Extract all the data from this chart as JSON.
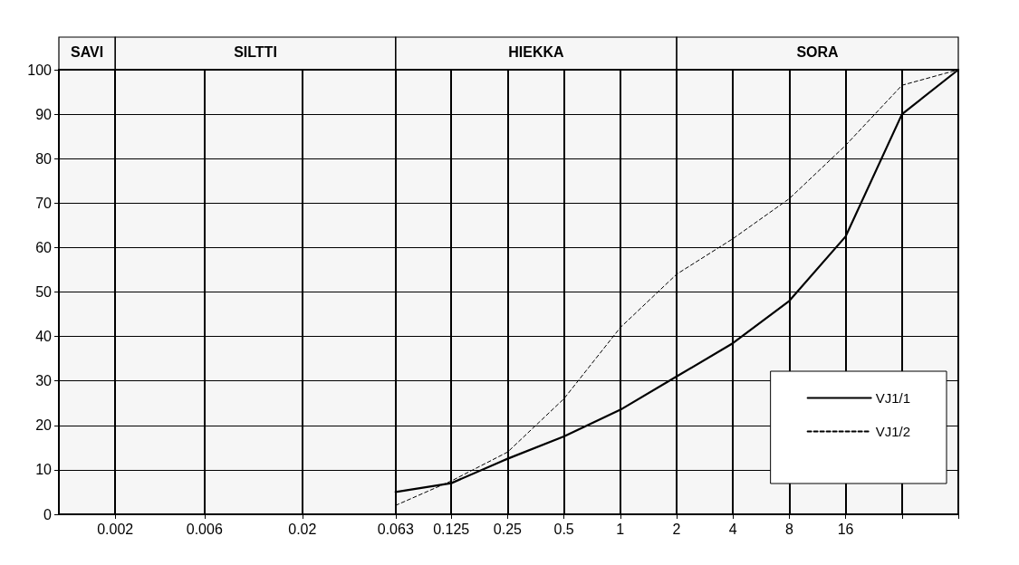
{
  "chart_data": {
    "type": "line",
    "log": "x",
    "grid": true,
    "legend": "bottom right",
    "marker": "none",
    "xlim": [
      0.001,
      64
    ],
    "xticks": [
      0.002,
      0.006,
      0.02,
      0.063,
      0.125,
      0.25,
      0.5,
      1,
      2,
      4,
      8,
      16,
      {
        "value": 32,
        "label": null
      },
      {
        "value": 64,
        "label": null
      }
    ],
    "ylim": [
      0,
      100
    ],
    "yticks": [
      0,
      10,
      20,
      30,
      40,
      50,
      60,
      70,
      80,
      90,
      100
    ],
    "bands": [
      {
        "axis": "x",
        "from": 0.001,
        "to": 0.002,
        "label": "SAVI"
      },
      {
        "axis": "x",
        "from": 0.002,
        "to": 0.063,
        "label": "SILTTI"
      },
      {
        "axis": "x",
        "from": 0.063,
        "to": 2,
        "label": "HIEKKA"
      },
      {
        "axis": "x",
        "from": 2,
        "to": 64,
        "label": "SORA"
      }
    ],
    "x": [
      0.063,
      0.125,
      0.25,
      0.5,
      1,
      2,
      4,
      8,
      16,
      32,
      64
    ],
    "series": [
      {
        "name": "VJ1/1",
        "color": "#000000",
        "line_style": "solid",
        "values": [
          5,
          7,
          12.5,
          17.5,
          23.5,
          31,
          38.5,
          48,
          62.5,
          90,
          100
        ]
      },
      {
        "name": "VJ1/2",
        "color": "#000000",
        "line_style": "dashed",
        "values": [
          2,
          7.5,
          14,
          26,
          42,
          54,
          62,
          71,
          83,
          96.5,
          100
        ]
      }
    ]
  }
}
